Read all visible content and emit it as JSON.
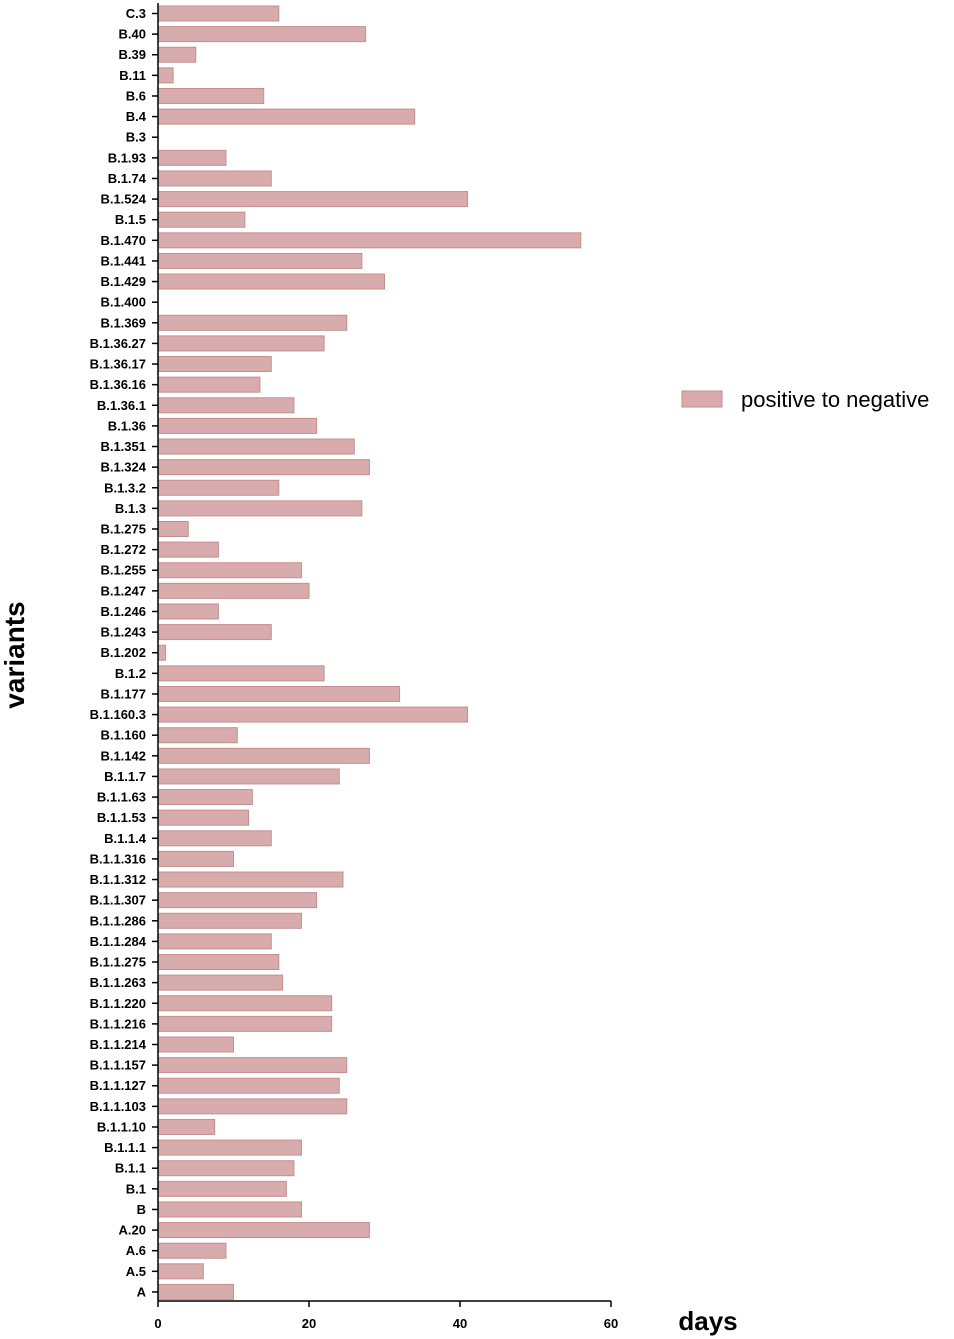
{
  "chart_data": {
    "type": "bar",
    "orientation": "horizontal",
    "xlabel": "days",
    "ylabel": "variants",
    "xlim": [
      0,
      60
    ],
    "xticks": [
      0,
      20,
      40,
      60
    ],
    "grid": false,
    "legend_position": "right",
    "categories": [
      "C.3",
      "B.40",
      "B.39",
      "B.11",
      "B.6",
      "B.4",
      "B.3",
      "B.1.93",
      "B.1.74",
      "B.1.524",
      "B.1.5",
      "B.1.470",
      "B.1.441",
      "B.1.429",
      "B.1.400",
      "B.1.369",
      "B.1.36.27",
      "B.1.36.17",
      "B.1.36.16",
      "B.1.36.1",
      "B.1.36",
      "B.1.351",
      "B.1.324",
      "B.1.3.2",
      "B.1.3",
      "B.1.275",
      "B.1.272",
      "B.1.255",
      "B.1.247",
      "B.1.246",
      "B.1.243",
      "B.1.202",
      "B.1.2",
      "B.1.177",
      "B.1.160.3",
      "B.1.160",
      "B.1.142",
      "B.1.1.7",
      "B.1.1.63",
      "B.1.1.53",
      "B.1.1.4",
      "B.1.1.316",
      "B.1.1.312",
      "B.1.1.307",
      "B.1.1.286",
      "B.1.1.284",
      "B.1.1.275",
      "B.1.1.263",
      "B.1.1.220",
      "B.1.1.216",
      "B.1.1.214",
      "B.1.1.157",
      "B.1.1.127",
      "B.1.1.103",
      "B.1.1.10",
      "B.1.1.1",
      "B.1.1",
      "B.1",
      "B",
      "A.20",
      "A.6",
      "A.5",
      "A"
    ],
    "series": [
      {
        "name": "positive to negative",
        "color": "#d8acac",
        "values": [
          16,
          27.5,
          5,
          2,
          14,
          34,
          0,
          9,
          15,
          41,
          11.5,
          56,
          27,
          30,
          0,
          25,
          22,
          15,
          13.5,
          18,
          21,
          26,
          28,
          16,
          27,
          4,
          8,
          19,
          20,
          8,
          15,
          1,
          22,
          32,
          41,
          10.5,
          28,
          24,
          12.5,
          12,
          15,
          10,
          24.5,
          21,
          19,
          15,
          16,
          16.5,
          23,
          23,
          10,
          25,
          24,
          25,
          7.5,
          19,
          18,
          17,
          19,
          28,
          9,
          6,
          10
        ]
      }
    ]
  }
}
